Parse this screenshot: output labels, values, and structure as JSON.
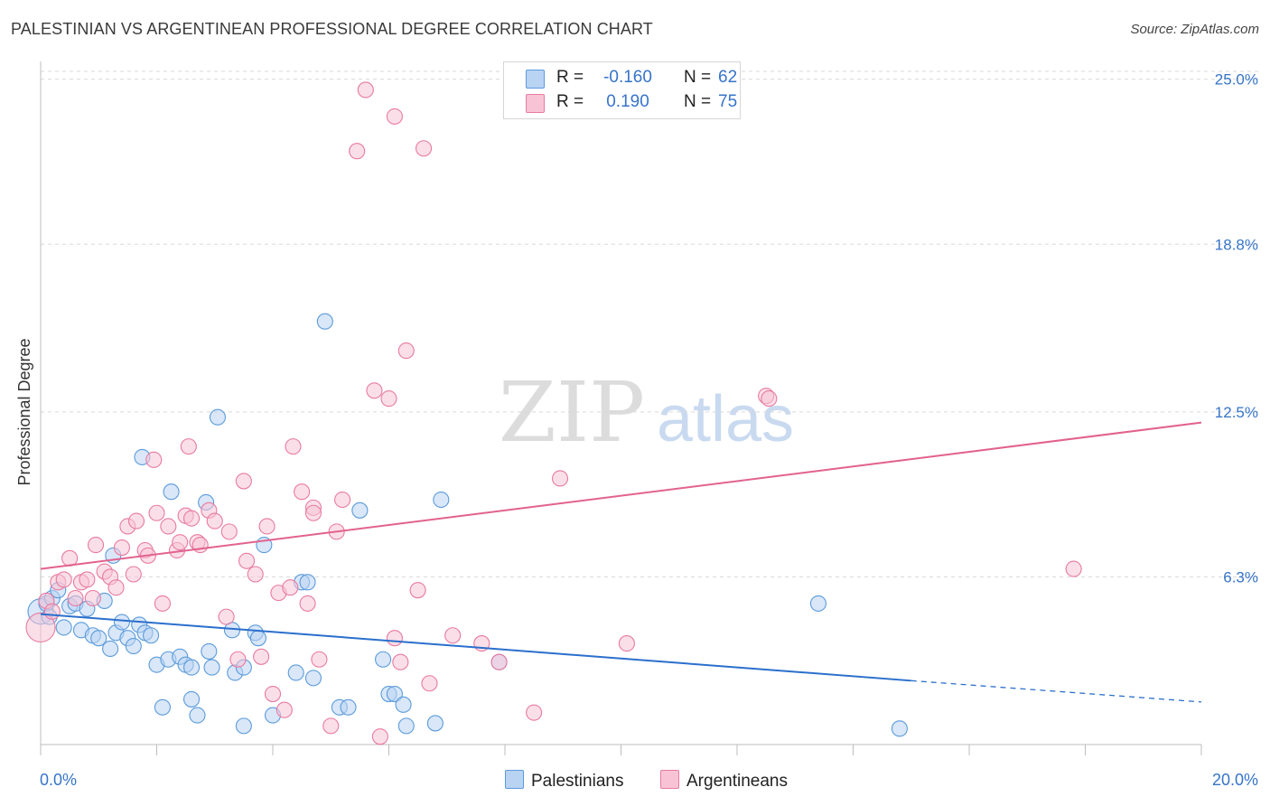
{
  "title": "PALESTINIAN VS ARGENTINEAN PROFESSIONAL DEGREE CORRELATION CHART",
  "source": "Source: ZipAtlas.com",
  "watermark": {
    "zip": "ZIP",
    "atlas": "atlas"
  },
  "legend": {
    "r_label": "R =",
    "n_label": "N =",
    "rows": [
      {
        "r": "-0.160",
        "n": "62",
        "color": "#5b9bdc",
        "fill": "#b9d3f3"
      },
      {
        "r": "0.190",
        "n": "75",
        "color": "#e87aa1",
        "fill": "#f8c4d5"
      }
    ]
  },
  "chart_data": {
    "type": "scatter",
    "title": "PALESTINIAN VS ARGENTINEAN PROFESSIONAL DEGREE CORRELATION CHART",
    "xlabel": "",
    "ylabel": "Professional Degree",
    "xlim": [
      0,
      20
    ],
    "ylim": [
      0,
      25.6
    ],
    "x_tick_labels": [
      "0.0%",
      "20.0%"
    ],
    "y_ticks": [
      6.3,
      12.5,
      18.8,
      25.0
    ],
    "y_tick_labels": [
      "6.3%",
      "12.5%",
      "18.8%",
      "25.0%"
    ],
    "grid": true,
    "series": [
      {
        "name": "Palestinians",
        "color": "#5b9bdc",
        "fill": "#b9d3f3",
        "points": [
          [
            0.0,
            5.0
          ],
          [
            0.1,
            5.3
          ],
          [
            0.15,
            4.8
          ],
          [
            0.2,
            5.5
          ],
          [
            0.3,
            5.8
          ],
          [
            0.4,
            4.4
          ],
          [
            0.5,
            5.2
          ],
          [
            0.6,
            5.3
          ],
          [
            0.7,
            4.3
          ],
          [
            0.8,
            5.1
          ],
          [
            0.9,
            4.1
          ],
          [
            1.0,
            4.0
          ],
          [
            1.1,
            5.4
          ],
          [
            1.2,
            3.6
          ],
          [
            1.25,
            7.1
          ],
          [
            1.3,
            4.2
          ],
          [
            1.4,
            4.6
          ],
          [
            1.5,
            4.0
          ],
          [
            1.6,
            3.7
          ],
          [
            1.7,
            4.5
          ],
          [
            1.75,
            10.8
          ],
          [
            1.8,
            4.2
          ],
          [
            1.9,
            4.1
          ],
          [
            2.0,
            3.0
          ],
          [
            2.1,
            1.4
          ],
          [
            2.2,
            3.2
          ],
          [
            2.25,
            9.5
          ],
          [
            2.4,
            3.3
          ],
          [
            2.5,
            3.0
          ],
          [
            2.6,
            2.9
          ],
          [
            2.6,
            1.7
          ],
          [
            2.7,
            1.1
          ],
          [
            2.85,
            9.1
          ],
          [
            2.9,
            3.5
          ],
          [
            2.95,
            2.9
          ],
          [
            3.05,
            12.3
          ],
          [
            3.3,
            4.3
          ],
          [
            3.35,
            2.7
          ],
          [
            3.5,
            2.9
          ],
          [
            3.5,
            0.7
          ],
          [
            3.7,
            4.2
          ],
          [
            3.75,
            4.0
          ],
          [
            3.85,
            7.5
          ],
          [
            4.0,
            1.1
          ],
          [
            4.4,
            2.7
          ],
          [
            4.5,
            6.1
          ],
          [
            4.6,
            6.1
          ],
          [
            4.7,
            2.5
          ],
          [
            4.9,
            15.9
          ],
          [
            5.15,
            1.4
          ],
          [
            5.3,
            1.4
          ],
          [
            5.5,
            8.8
          ],
          [
            5.9,
            3.2
          ],
          [
            6.0,
            1.9
          ],
          [
            6.1,
            1.9
          ],
          [
            6.25,
            1.5
          ],
          [
            6.3,
            0.7
          ],
          [
            6.8,
            0.8
          ],
          [
            6.9,
            9.2
          ],
          [
            7.9,
            3.1
          ],
          [
            13.4,
            5.3
          ],
          [
            14.8,
            0.6
          ]
        ]
      },
      {
        "name": "Argentineans",
        "color": "#e87aa1",
        "fill": "#f8c4d5",
        "points": [
          [
            0.0,
            4.4
          ],
          [
            0.1,
            5.4
          ],
          [
            0.2,
            5.0
          ],
          [
            0.3,
            6.1
          ],
          [
            0.4,
            6.2
          ],
          [
            0.5,
            7.0
          ],
          [
            0.6,
            5.5
          ],
          [
            0.7,
            6.1
          ],
          [
            0.8,
            6.2
          ],
          [
            0.9,
            5.5
          ],
          [
            0.95,
            7.5
          ],
          [
            1.1,
            6.5
          ],
          [
            1.2,
            6.3
          ],
          [
            1.3,
            5.9
          ],
          [
            1.4,
            7.4
          ],
          [
            1.5,
            8.2
          ],
          [
            1.6,
            6.4
          ],
          [
            1.65,
            8.4
          ],
          [
            1.8,
            7.3
          ],
          [
            1.85,
            7.1
          ],
          [
            1.95,
            10.7
          ],
          [
            2.0,
            8.7
          ],
          [
            2.1,
            5.3
          ],
          [
            2.2,
            8.2
          ],
          [
            2.35,
            7.3
          ],
          [
            2.4,
            7.6
          ],
          [
            2.5,
            8.6
          ],
          [
            2.55,
            11.2
          ],
          [
            2.6,
            8.5
          ],
          [
            2.7,
            7.6
          ],
          [
            2.75,
            7.5
          ],
          [
            2.9,
            8.8
          ],
          [
            3.0,
            8.4
          ],
          [
            3.2,
            4.8
          ],
          [
            3.25,
            8.0
          ],
          [
            3.4,
            3.2
          ],
          [
            3.5,
            9.9
          ],
          [
            3.55,
            6.9
          ],
          [
            3.7,
            6.4
          ],
          [
            3.8,
            3.3
          ],
          [
            3.9,
            8.2
          ],
          [
            4.0,
            1.9
          ],
          [
            4.1,
            5.7
          ],
          [
            4.2,
            1.3
          ],
          [
            4.3,
            5.9
          ],
          [
            4.35,
            11.2
          ],
          [
            4.5,
            9.5
          ],
          [
            4.6,
            5.3
          ],
          [
            4.7,
            8.9
          ],
          [
            4.7,
            8.7
          ],
          [
            4.8,
            3.2
          ],
          [
            5.0,
            0.7
          ],
          [
            5.1,
            8.0
          ],
          [
            5.2,
            9.2
          ],
          [
            5.45,
            22.3
          ],
          [
            5.6,
            24.6
          ],
          [
            5.75,
            13.3
          ],
          [
            5.85,
            0.3
          ],
          [
            6.0,
            13.0
          ],
          [
            6.1,
            23.6
          ],
          [
            6.1,
            4.0
          ],
          [
            6.2,
            3.1
          ],
          [
            6.3,
            14.8
          ],
          [
            6.5,
            5.8
          ],
          [
            6.6,
            22.4
          ],
          [
            6.7,
            2.3
          ],
          [
            7.1,
            4.1
          ],
          [
            7.6,
            3.8
          ],
          [
            7.9,
            3.1
          ],
          [
            8.5,
            1.2
          ],
          [
            8.95,
            10.0
          ],
          [
            10.1,
            3.8
          ],
          [
            12.5,
            13.1
          ],
          [
            12.55,
            13.0
          ],
          [
            17.8,
            6.6
          ]
        ]
      }
    ],
    "trendlines": [
      {
        "series": "Palestinians",
        "x0": 0,
        "y0": 4.9,
        "x1": 15.0,
        "y1": 2.4,
        "dashed_to_x": 20,
        "dashed_to_y": 1.6
      },
      {
        "series": "Argentineans",
        "x0": 0,
        "y0": 6.6,
        "x1": 20,
        "y1": 12.1
      }
    ]
  }
}
